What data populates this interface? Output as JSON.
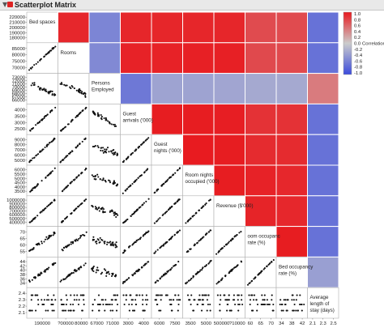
{
  "window": {
    "title": "Scatterplot Matrix"
  },
  "icons": {
    "disclosure": "disclosure-triangle-icon",
    "hotspot": "red-hotspot-icon"
  },
  "colors": {
    "positive": "#e8191e",
    "negative": "#3b4bdc",
    "neutral": "#cccccc"
  },
  "chart_data": {
    "type": "heatmap",
    "subtype": "scatterplot-matrix",
    "title": "Scatterplot Matrix",
    "variables": [
      {
        "label": [
          "Bed spaces"
        ],
        "ticks": [
          "220000",
          "210000",
          "200000",
          "190000",
          "180000"
        ],
        "xticks": [
          "190000"
        ]
      },
      {
        "label": [
          "Rooms"
        ],
        "ticks": [
          "85000",
          "80000",
          "75000",
          "70000"
        ],
        "xticks": [
          "?00000",
          "80000"
        ]
      },
      {
        "label": [
          "Persons",
          "Employed"
        ],
        "ticks": [
          "73000",
          "72000",
          "71000",
          "70000",
          "69000",
          "68000",
          "67000",
          "66000"
        ],
        "xticks": [
          "67000",
          "71000"
        ]
      },
      {
        "label": [
          "Guest",
          "arrivals ('000)"
        ],
        "ticks": [
          "4000",
          "3500",
          "3000",
          "2500"
        ],
        "xticks": [
          "3000",
          "4000"
        ]
      },
      {
        "label": [
          "Guest",
          "nights ('000)"
        ],
        "ticks": [
          "9000",
          "8000",
          "7000",
          "6000",
          "5000"
        ],
        "xticks": [
          "6000",
          "7500"
        ]
      },
      {
        "label": [
          "Room nights",
          "occupied ('000)"
        ],
        "ticks": [
          "6000",
          "5500",
          "5000",
          "4500",
          "4000",
          "3500"
        ],
        "xticks": [
          "3500",
          "5000"
        ]
      },
      {
        "label": [
          "Revenue ($'000)"
        ],
        "ticks": [
          "1000000",
          "900000",
          "800000",
          "700000",
          "600000",
          "500000",
          "400000"
        ],
        "xticks": [
          "500000",
          "?10000"
        ]
      },
      {
        "label": [
          "oom occupanc",
          "rate (%)"
        ],
        "ticks": [
          "70",
          "65",
          "60",
          "55"
        ],
        "xticks": [
          "60",
          "65",
          "70"
        ]
      },
      {
        "label": [
          "Bed occupancy",
          "rate (%)"
        ],
        "ticks": [
          "44",
          "42",
          "40",
          "38",
          "36",
          "34"
        ],
        "xticks": [
          "34",
          "38",
          "42"
        ]
      },
      {
        "label": [
          "Average",
          "length of",
          "stay (days)"
        ],
        "ticks": [
          "2.4",
          "2.3",
          "2.2",
          "2.1"
        ],
        "xticks": [
          "2.1",
          "2.3",
          "2.5"
        ]
      }
    ],
    "correlation_upper": [
      [
        0.92,
        -0.55,
        0.93,
        0.93,
        0.93,
        0.93,
        0.72,
        0.72,
        -0.7
      ],
      [
        -0.52,
        0.95,
        0.95,
        0.96,
        0.96,
        0.73,
        0.73,
        -0.7
      ],
      [
        -0.65,
        -0.32,
        -0.32,
        -0.3,
        -0.27,
        -0.27,
        0.45
      ],
      [
        0.98,
        0.98,
        0.97,
        0.86,
        0.86,
        -0.7
      ],
      [
        0.99,
        0.98,
        0.9,
        0.9,
        -0.7
      ],
      [
        0.98,
        0.95,
        0.92,
        -0.7
      ],
      [
        0.94,
        0.92,
        -0.7
      ],
      [
        0.98,
        -0.7
      ],
      [
        -0.35
      ]
    ],
    "legend": {
      "title": "Correlation",
      "ticks": [
        "1.0",
        "0.8",
        "0.6",
        "0.4",
        "0.2",
        "0.0",
        "-0.2",
        "-0.4",
        "-0.6",
        "-0.8",
        "-1.0"
      ],
      "placement": "right",
      "range": [
        -1,
        1
      ]
    }
  }
}
